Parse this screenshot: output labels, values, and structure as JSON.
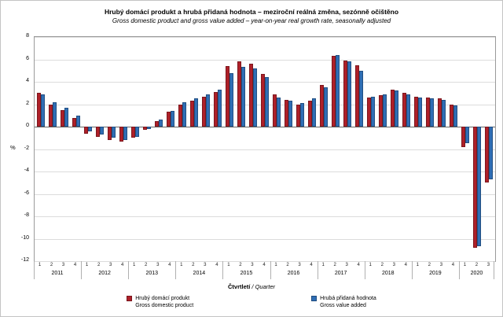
{
  "title": "Hrubý domácí produkt a hrubá přidaná hodnota – meziroční reálná změna, sezónně očištěno",
  "subtitle": "Gross domestic product and gross value added – year-on-year real growth rate, seasonally adjusted",
  "chart_data": {
    "type": "bar",
    "ylabel": "%",
    "xlabel_cz": "Čtvrtletí",
    "xlabel_en": " / Quarter",
    "ylim": [
      -12,
      8
    ],
    "yticks": [
      8,
      6,
      4,
      2,
      0,
      -2,
      -4,
      -6,
      -8,
      -10,
      -12
    ],
    "grid": "horizontal",
    "legend_position": "bottom",
    "years": [
      {
        "year": "2011",
        "quarters": [
          "1",
          "2",
          "3",
          "4"
        ]
      },
      {
        "year": "2012",
        "quarters": [
          "1",
          "2",
          "3",
          "4"
        ]
      },
      {
        "year": "2013",
        "quarters": [
          "1",
          "2",
          "3",
          "4"
        ]
      },
      {
        "year": "2014",
        "quarters": [
          "1",
          "2",
          "3",
          "4"
        ]
      },
      {
        "year": "2015",
        "quarters": [
          "1",
          "2",
          "3",
          "4"
        ]
      },
      {
        "year": "2016",
        "quarters": [
          "1",
          "2",
          "3",
          "4"
        ]
      },
      {
        "year": "2017",
        "quarters": [
          "1",
          "2",
          "3",
          "4"
        ]
      },
      {
        "year": "2018",
        "quarters": [
          "1",
          "2",
          "3",
          "4"
        ]
      },
      {
        "year": "2019",
        "quarters": [
          "1",
          "2",
          "3",
          "4"
        ]
      },
      {
        "year": "2020",
        "quarters": [
          "1",
          "2",
          "3"
        ]
      }
    ],
    "series": [
      {
        "name": "Hrubý domácí produkt",
        "name_en": "Gross domestic product",
        "color": "#ae2029",
        "values": [
          3.0,
          2.0,
          1.5,
          0.8,
          -0.6,
          -0.9,
          -1.2,
          -1.3,
          -1.0,
          -0.3,
          0.5,
          1.3,
          2.0,
          2.3,
          2.7,
          3.1,
          5.4,
          5.8,
          5.6,
          4.7,
          2.9,
          2.4,
          2.0,
          2.3,
          3.7,
          6.3,
          5.9,
          5.5,
          2.6,
          2.8,
          3.3,
          3.0,
          2.7,
          2.6,
          2.5,
          2.0,
          -1.8,
          -10.8,
          -5.0
        ]
      },
      {
        "name": "Hrubá přidaná hodnota",
        "name_en": "Gross value added",
        "color": "#2f6eb5",
        "values": [
          2.9,
          2.2,
          1.7,
          1.0,
          -0.4,
          -0.7,
          -1.0,
          -1.2,
          -0.9,
          -0.2,
          0.6,
          1.4,
          2.2,
          2.5,
          2.9,
          3.3,
          4.8,
          5.3,
          5.2,
          4.4,
          2.6,
          2.3,
          2.1,
          2.5,
          3.5,
          6.4,
          5.8,
          5.0,
          2.7,
          2.9,
          3.2,
          2.9,
          2.6,
          2.5,
          2.4,
          1.9,
          -1.5,
          -10.7,
          -4.7
        ]
      }
    ]
  }
}
